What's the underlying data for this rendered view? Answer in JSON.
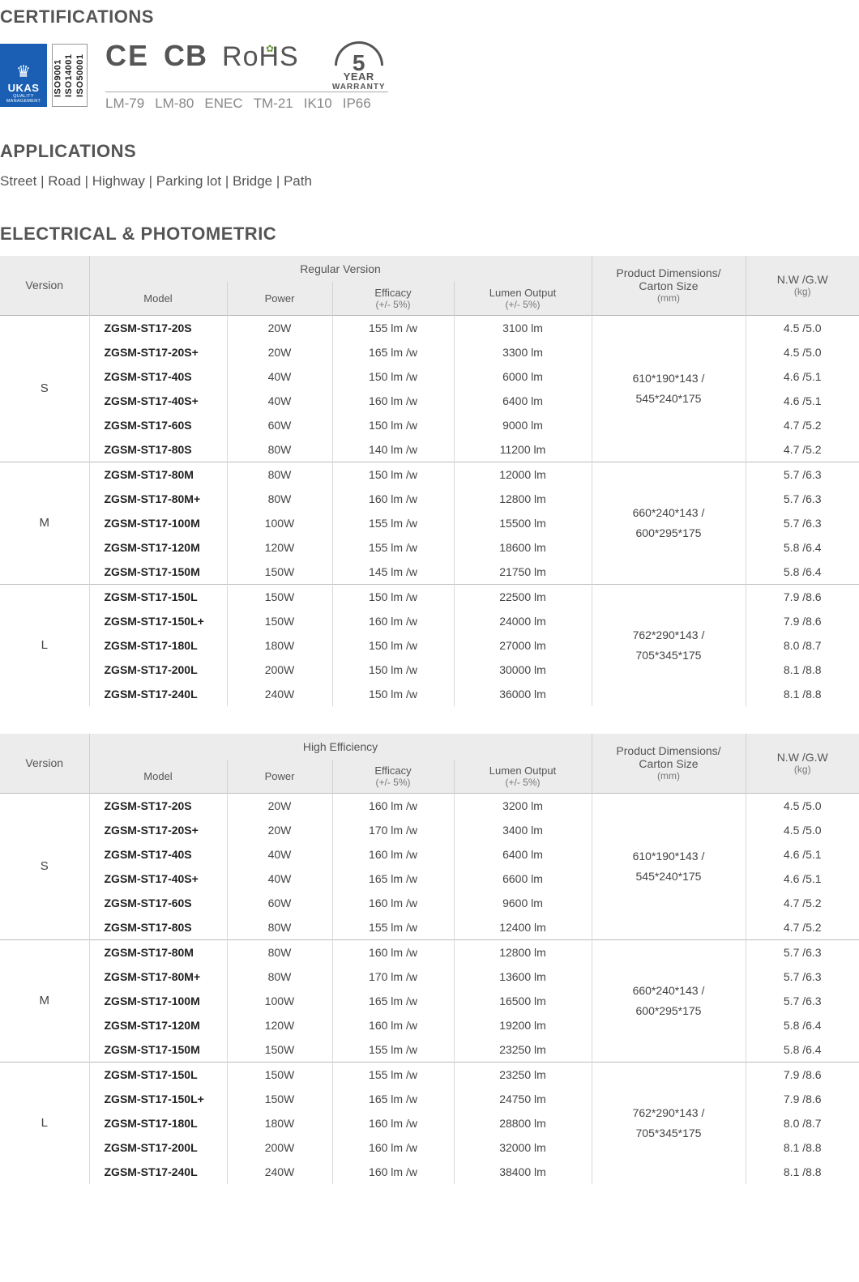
{
  "sections": {
    "certifications_title": "CERTIFICATIONS",
    "applications_title": "APPLICATIONS",
    "electrical_title": "ELECTRICAL & PHOTOMETRIC"
  },
  "certifications": {
    "ukas": {
      "big": "UKAS",
      "small1": "QUALITY",
      "small2": "MANAGEMENT"
    },
    "iso": "ISO9001\nISO14001\nISO50001",
    "marks": {
      "ce": "CE",
      "cb": "CB",
      "rohs": "RoHS"
    },
    "bottom": [
      "LM-79",
      "LM-80",
      "ENEC",
      "TM-21",
      "IK10",
      "IP66"
    ],
    "warranty": {
      "num": "5",
      "year": "YEAR",
      "text": "WARRANTY"
    }
  },
  "applications_list": "Street  |  Road  |  Highway  |  Parking lot  |  Bridge  |  Path",
  "table_headers": {
    "version": "Version",
    "regular": "Regular Version",
    "high_eff": "High Efficiency",
    "model": "Model",
    "power": "Power",
    "efficacy": "Efficacy",
    "efficacy_sub": "(+/- 5%)",
    "lumen": "Lumen Output",
    "lumen_sub": "(+/- 5%)",
    "dims": "Product Dimensions/",
    "dims2": "Carton Size",
    "dims_sub": "(mm)",
    "weight": "N.W /G.W",
    "weight_sub": "(kg)"
  },
  "colors": {
    "heading": "#555555",
    "header_bg": "#ececec",
    "border": "#d9d9d9",
    "ukas_bg": "#1a5fb4"
  },
  "tables": [
    {
      "variant_label": "Regular Version",
      "groups": [
        {
          "version": "S",
          "dims": "610*190*143 /\n545*240*175",
          "rows": [
            {
              "model": "ZGSM-ST17-20S",
              "power": "20W",
              "eff": "155 lm /w",
              "lumen": "3100 lm",
              "wt": "4.5 /5.0"
            },
            {
              "model": "ZGSM-ST17-20S+",
              "power": "20W",
              "eff": "165 lm /w",
              "lumen": "3300 lm",
              "wt": "4.5 /5.0"
            },
            {
              "model": "ZGSM-ST17-40S",
              "power": "40W",
              "eff": "150 lm /w",
              "lumen": "6000 lm",
              "wt": "4.6 /5.1"
            },
            {
              "model": "ZGSM-ST17-40S+",
              "power": "40W",
              "eff": "160 lm /w",
              "lumen": "6400 lm",
              "wt": "4.6 /5.1"
            },
            {
              "model": "ZGSM-ST17-60S",
              "power": "60W",
              "eff": "150 lm /w",
              "lumen": "9000 lm",
              "wt": "4.7 /5.2"
            },
            {
              "model": "ZGSM-ST17-80S",
              "power": "80W",
              "eff": "140 lm /w",
              "lumen": "11200 lm",
              "wt": "4.7 /5.2"
            }
          ]
        },
        {
          "version": "M",
          "dims": "660*240*143 /\n600*295*175",
          "rows": [
            {
              "model": "ZGSM-ST17-80M",
              "power": "80W",
              "eff": "150 lm /w",
              "lumen": "12000 lm",
              "wt": "5.7 /6.3"
            },
            {
              "model": "ZGSM-ST17-80M+",
              "power": "80W",
              "eff": "160 lm /w",
              "lumen": "12800 lm",
              "wt": "5.7 /6.3"
            },
            {
              "model": "ZGSM-ST17-100M",
              "power": "100W",
              "eff": "155 lm /w",
              "lumen": "15500 lm",
              "wt": "5.7 /6.3"
            },
            {
              "model": "ZGSM-ST17-120M",
              "power": "120W",
              "eff": "155 lm /w",
              "lumen": "18600 lm",
              "wt": "5.8 /6.4"
            },
            {
              "model": "ZGSM-ST17-150M",
              "power": "150W",
              "eff": "145 lm /w",
              "lumen": "21750 lm",
              "wt": "5.8 /6.4"
            }
          ]
        },
        {
          "version": "L",
          "dims": "762*290*143 /\n705*345*175",
          "rows": [
            {
              "model": "ZGSM-ST17-150L",
              "power": "150W",
              "eff": "150 lm /w",
              "lumen": "22500 lm",
              "wt": "7.9 /8.6"
            },
            {
              "model": "ZGSM-ST17-150L+",
              "power": "150W",
              "eff": "160 lm /w",
              "lumen": "24000 lm",
              "wt": "7.9 /8.6"
            },
            {
              "model": "ZGSM-ST17-180L",
              "power": "180W",
              "eff": "150 lm /w",
              "lumen": "27000 lm",
              "wt": "8.0 /8.7"
            },
            {
              "model": "ZGSM-ST17-200L",
              "power": "200W",
              "eff": "150 lm /w",
              "lumen": "30000 lm",
              "wt": "8.1 /8.8"
            },
            {
              "model": "ZGSM-ST17-240L",
              "power": "240W",
              "eff": "150 lm /w",
              "lumen": "36000 lm",
              "wt": "8.1 /8.8"
            }
          ]
        }
      ]
    },
    {
      "variant_label": "High Efficiency",
      "groups": [
        {
          "version": "S",
          "dims": "610*190*143 /\n545*240*175",
          "rows": [
            {
              "model": "ZGSM-ST17-20S",
              "power": "20W",
              "eff": "160 lm /w",
              "lumen": "3200 lm",
              "wt": "4.5 /5.0"
            },
            {
              "model": "ZGSM-ST17-20S+",
              "power": "20W",
              "eff": "170 lm /w",
              "lumen": "3400 lm",
              "wt": "4.5 /5.0"
            },
            {
              "model": "ZGSM-ST17-40S",
              "power": "40W",
              "eff": "160 lm /w",
              "lumen": "6400 lm",
              "wt": "4.6 /5.1"
            },
            {
              "model": "ZGSM-ST17-40S+",
              "power": "40W",
              "eff": "165 lm /w",
              "lumen": "6600 lm",
              "wt": "4.6 /5.1"
            },
            {
              "model": "ZGSM-ST17-60S",
              "power": "60W",
              "eff": "160 lm /w",
              "lumen": "9600 lm",
              "wt": "4.7 /5.2"
            },
            {
              "model": "ZGSM-ST17-80S",
              "power": "80W",
              "eff": "155 lm /w",
              "lumen": "12400 lm",
              "wt": "4.7 /5.2"
            }
          ]
        },
        {
          "version": "M",
          "dims": "660*240*143 /\n600*295*175",
          "rows": [
            {
              "model": "ZGSM-ST17-80M",
              "power": "80W",
              "eff": "160 lm /w",
              "lumen": "12800 lm",
              "wt": "5.7 /6.3"
            },
            {
              "model": "ZGSM-ST17-80M+",
              "power": "80W",
              "eff": "170 lm /w",
              "lumen": "13600 lm",
              "wt": "5.7 /6.3"
            },
            {
              "model": "ZGSM-ST17-100M",
              "power": "100W",
              "eff": "165 lm /w",
              "lumen": "16500 lm",
              "wt": "5.7 /6.3"
            },
            {
              "model": "ZGSM-ST17-120M",
              "power": "120W",
              "eff": "160 lm /w",
              "lumen": "19200 lm",
              "wt": "5.8 /6.4"
            },
            {
              "model": "ZGSM-ST17-150M",
              "power": "150W",
              "eff": "155 lm /w",
              "lumen": "23250 lm",
              "wt": "5.8 /6.4"
            }
          ]
        },
        {
          "version": "L",
          "dims": "762*290*143 /\n705*345*175",
          "rows": [
            {
              "model": "ZGSM-ST17-150L",
              "power": "150W",
              "eff": "155 lm /w",
              "lumen": "23250 lm",
              "wt": "7.9 /8.6"
            },
            {
              "model": "ZGSM-ST17-150L+",
              "power": "150W",
              "eff": "165 lm /w",
              "lumen": "24750 lm",
              "wt": "7.9 /8.6"
            },
            {
              "model": "ZGSM-ST17-180L",
              "power": "180W",
              "eff": "160 lm /w",
              "lumen": "28800 lm",
              "wt": "8.0 /8.7"
            },
            {
              "model": "ZGSM-ST17-200L",
              "power": "200W",
              "eff": "160 lm /w",
              "lumen": "32000 lm",
              "wt": "8.1 /8.8"
            },
            {
              "model": "ZGSM-ST17-240L",
              "power": "240W",
              "eff": "160 lm /w",
              "lumen": "38400 lm",
              "wt": "8.1 /8.8"
            }
          ]
        }
      ]
    }
  ]
}
